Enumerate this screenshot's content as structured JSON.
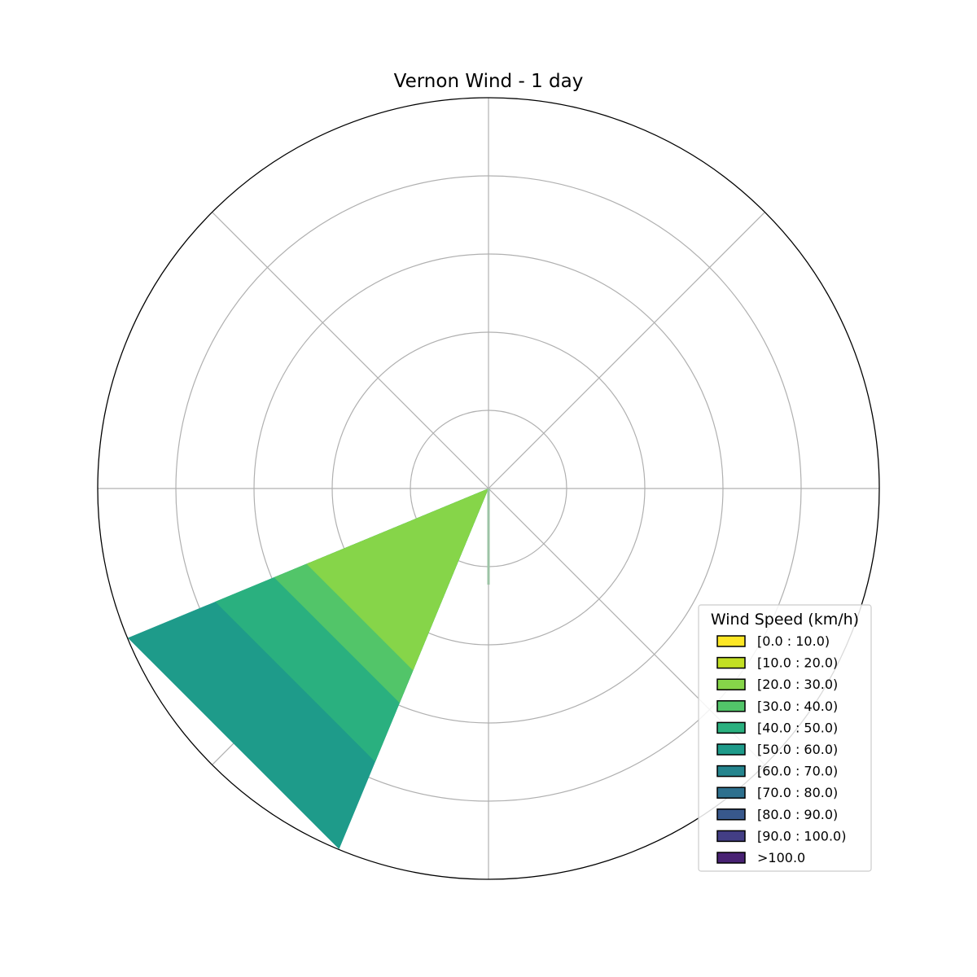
{
  "chart_data": {
    "type": "windrose",
    "title": "Vernon Wind - 1 day",
    "radial_axis": {
      "max": 100,
      "rings": [
        20,
        40,
        60,
        80
      ],
      "ring_labels_shown": false
    },
    "angular_gridlines_deg": [
      0,
      45,
      90,
      135,
      180,
      225,
      270,
      315
    ],
    "grid": true,
    "colors": {
      "grid": "#b0b0b0",
      "outline": "#000000",
      "minor_stub": "#9cc3a6"
    },
    "legend": {
      "title": "Wind Speed (km/h)",
      "placement": "bottom-right",
      "entries": [
        {
          "label": "[0.0 : 10.0)",
          "color": "#fde725"
        },
        {
          "label": "[10.0 : 20.0)",
          "color": "#c2df23"
        },
        {
          "label": "[20.0 : 30.0)",
          "color": "#86d549"
        },
        {
          "label": "[30.0 : 40.0)",
          "color": "#52c569"
        },
        {
          "label": "[40.0 : 50.0)",
          "color": "#2ab07f"
        },
        {
          "label": "[50.0 : 60.0)",
          "color": "#1e9b8a"
        },
        {
          "label": "[60.0 : 70.0)",
          "color": "#25858e"
        },
        {
          "label": "[70.0 : 80.0)",
          "color": "#2d708e"
        },
        {
          "label": "[80.0 : 90.0)",
          "color": "#38588c"
        },
        {
          "label": "[90.0 : 100.0)",
          "color": "#433e85"
        },
        {
          "label": ">100.0",
          "color": "#482173"
        }
      ]
    },
    "sectors": [
      {
        "direction_deg": 225,
        "half_width_deg": 22.5,
        "cumulative_frequency": [
          {
            "bin": "[20.0 : 30.0)",
            "upper": 50.4,
            "color": "#86d549"
          },
          {
            "bin": "[30.0 : 40.0)",
            "upper": 59.4,
            "color": "#52c569"
          },
          {
            "bin": "[40.0 : 50.0)",
            "upper": 75.7,
            "color": "#2ab07f"
          },
          {
            "bin": "[50.0 : 60.0)",
            "upper": 99.9,
            "color": "#1e9b8a"
          }
        ]
      }
    ],
    "minor_stub": {
      "direction_deg": 180,
      "value": 24.6
    }
  }
}
